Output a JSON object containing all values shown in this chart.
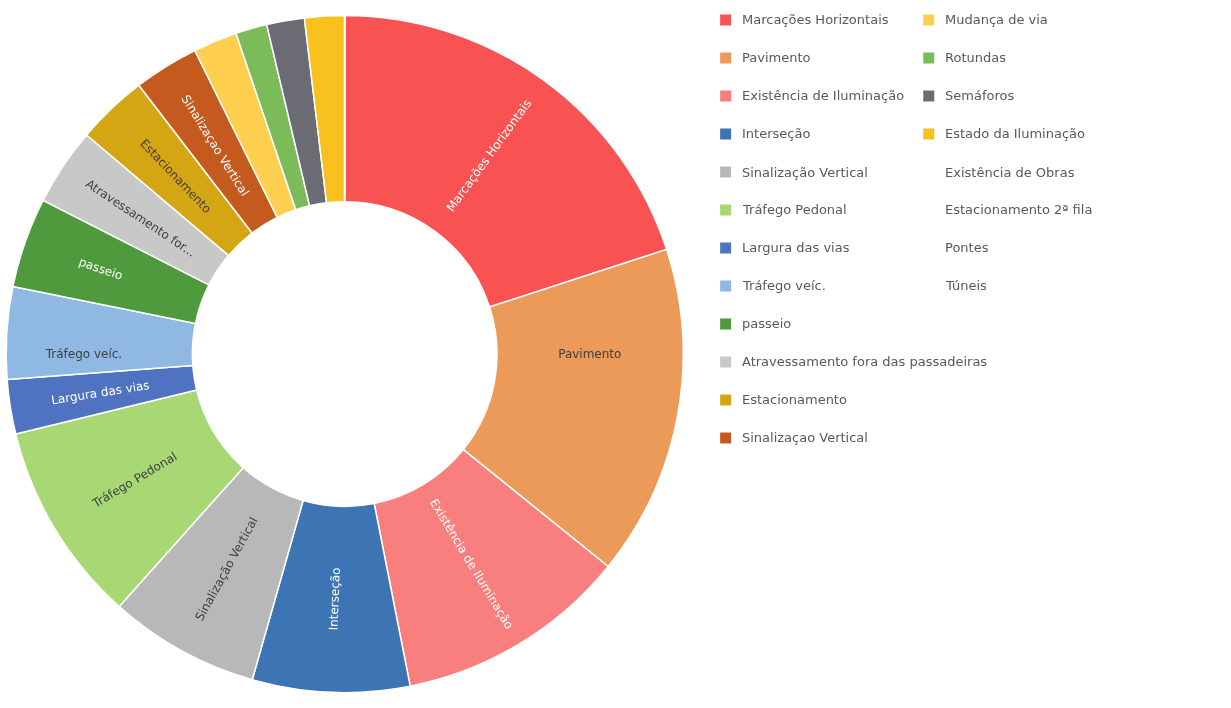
{
  "chart_data": {
    "type": "donut",
    "categories": [
      "Marcações Horizontais",
      "Pavimento",
      "Existência de Iluminação",
      "Interseção",
      "Sinalização Vertical",
      "Tráfego Pedonal",
      "Largura das vias",
      "Tráfego veíc.",
      "passeio",
      "Atravessamento fora das passadeiras",
      "Estacionamento",
      "Sinalizaçao Vertical",
      "Mudança de via",
      "Rotundas",
      "Semáforos",
      "Estado da Iluminação",
      "Existência de Obras",
      "Estacionamento 2ª fila",
      "Pontes",
      "Túneis"
    ],
    "values": [
      20.0,
      15.8,
      11.1,
      7.5,
      7.2,
      9.6,
      2.6,
      4.4,
      4.3,
      3.7,
      3.4,
      3.1,
      2.1,
      1.5,
      1.8,
      1.9,
      0,
      0,
      0,
      0
    ],
    "colors": [
      "#f95252",
      "#ec9a5a",
      "#f97f7f",
      "#3c74b4",
      "#b8b8b8",
      "#a8d873",
      "#4f73c0",
      "#8fb8e3",
      "#4e9a3c",
      "#c8c8c8",
      "#d4a614",
      "#c45a1e",
      "#ffd04f",
      "#7cbb5a",
      "#6b6b73",
      "#f8c11e",
      null,
      null,
      null,
      null
    ],
    "value_labels": [
      "Marcações Horizontais",
      "Pavimento",
      "Existência de Iluminação",
      "Interseção",
      "Sinalização Vertical",
      "Tráfego Pedonal",
      "Largura das vias",
      "Tráfego veíc.",
      "passeio",
      "Atravessamento for...",
      "Estacionamento",
      "Sinalizaçao Vertical",
      null,
      null,
      null,
      null,
      null,
      null,
      null,
      null
    ],
    "legend": "right"
  }
}
